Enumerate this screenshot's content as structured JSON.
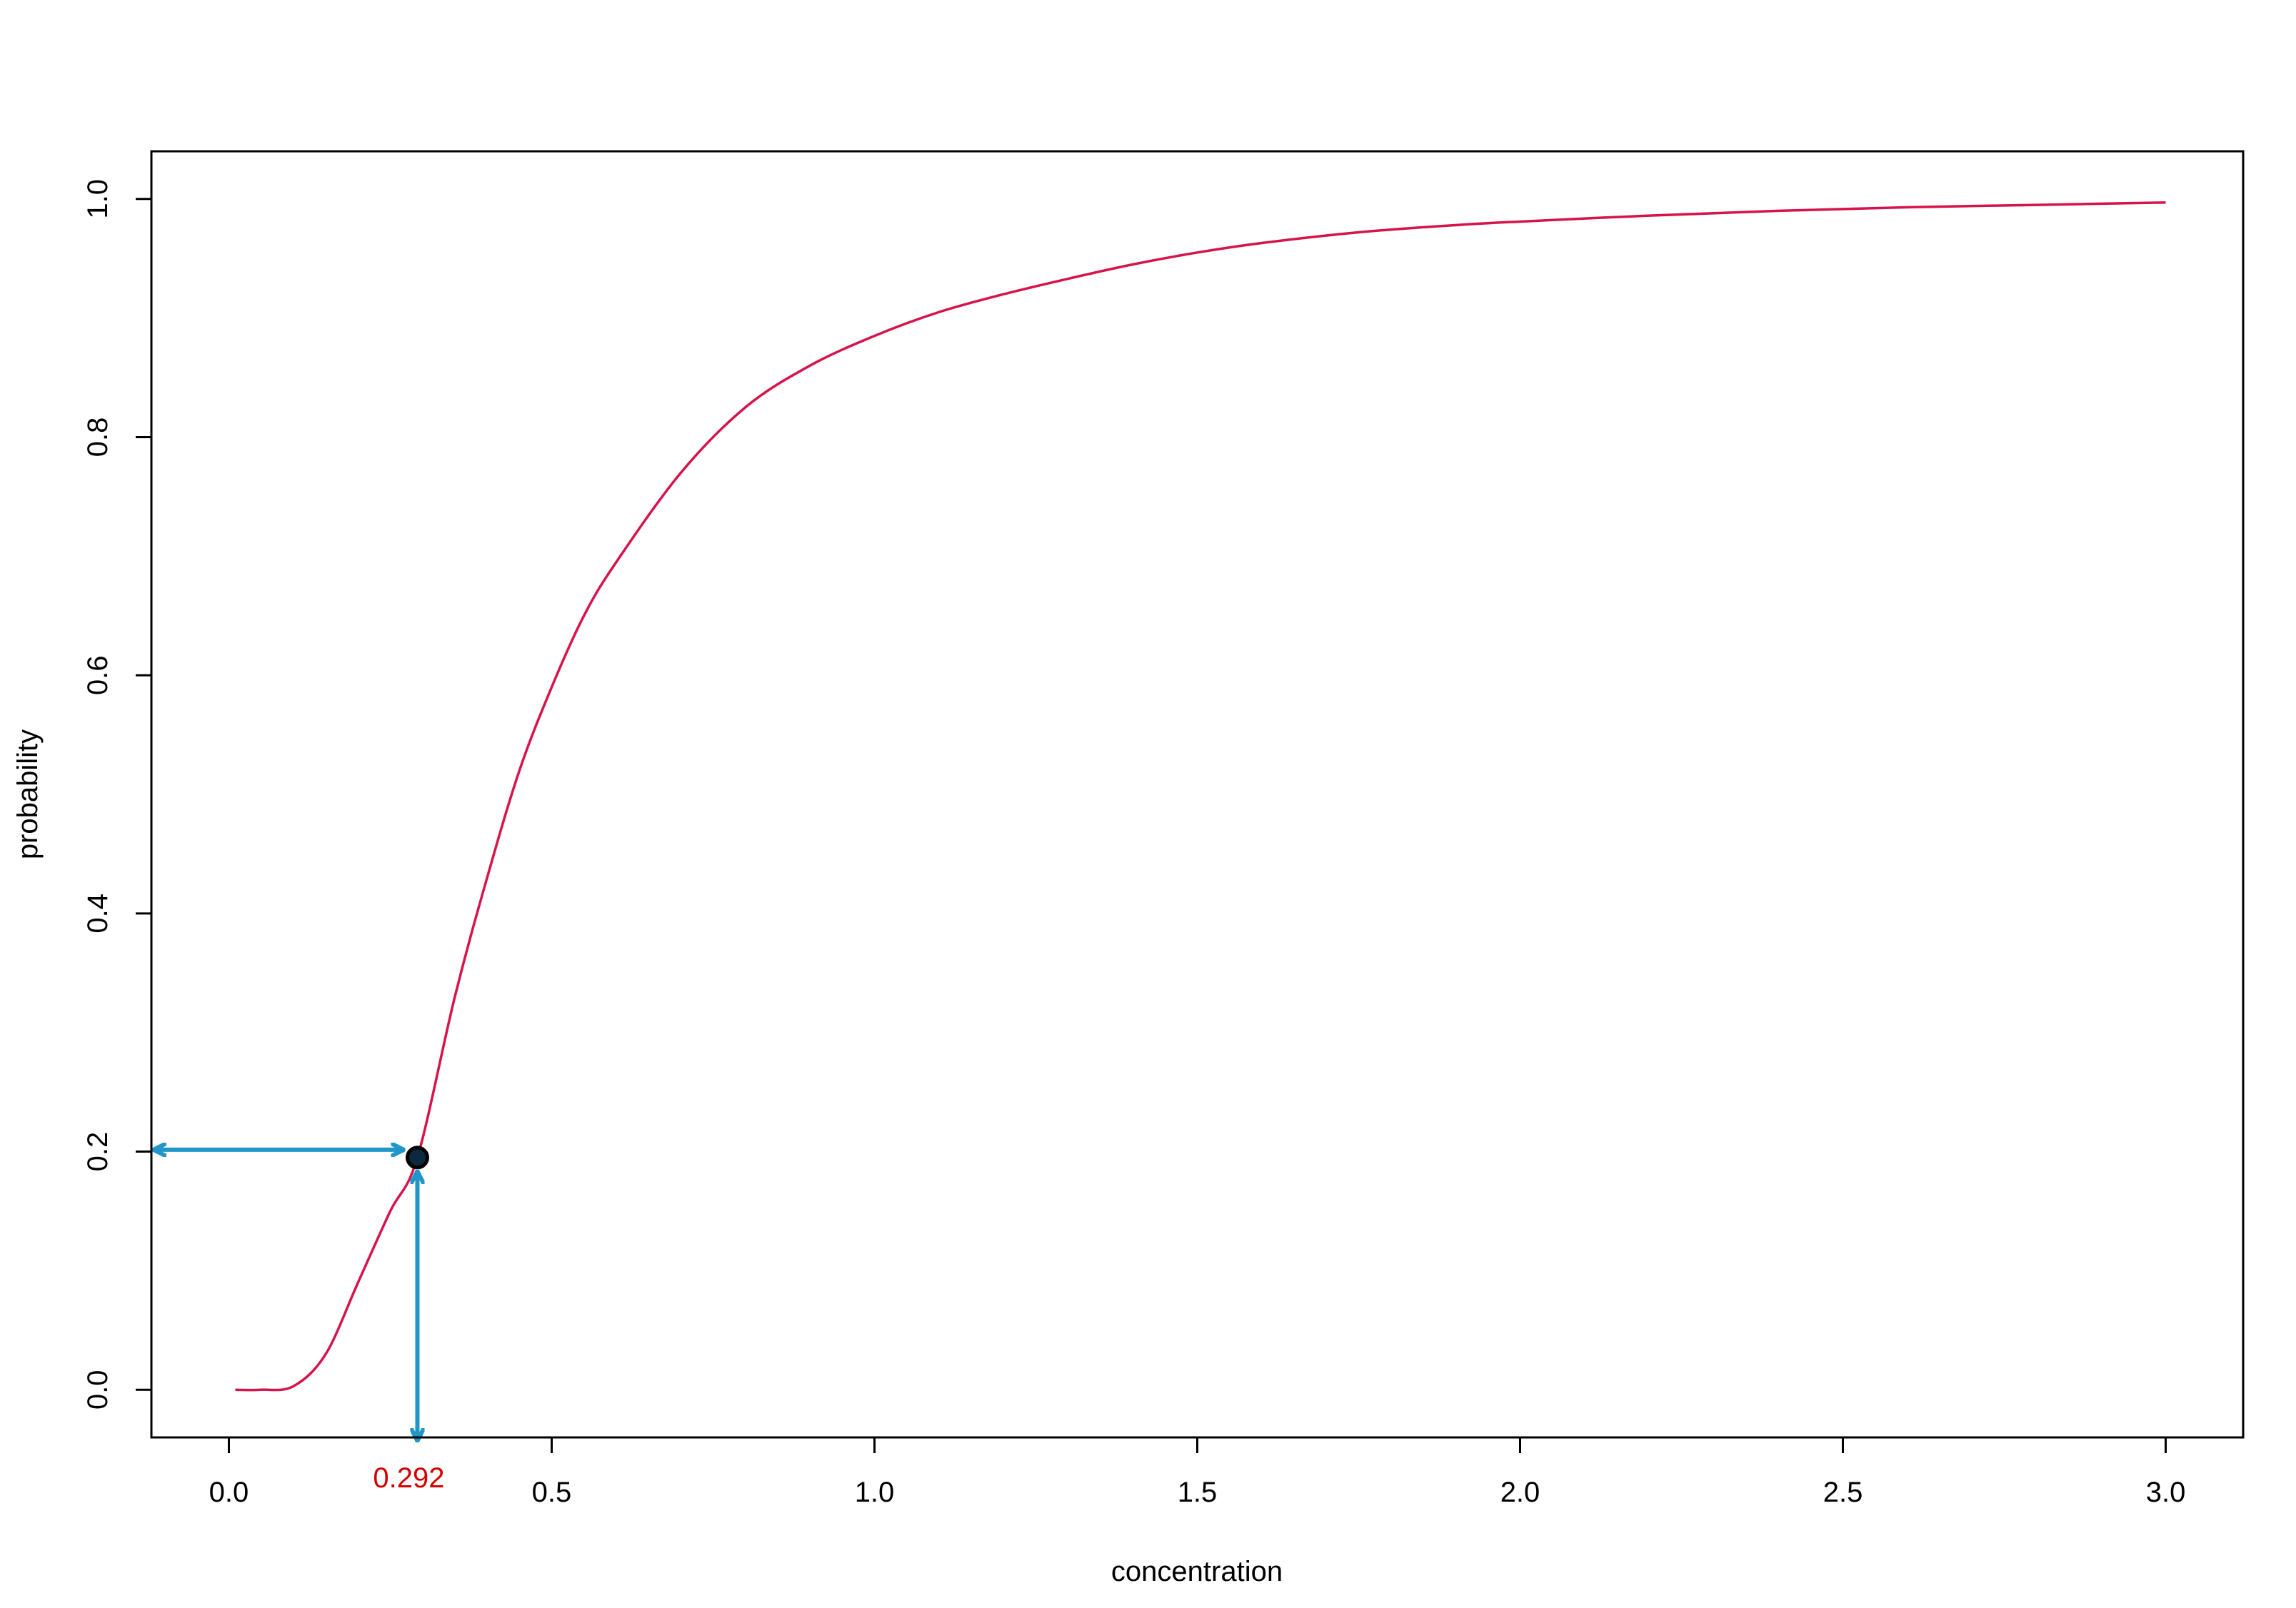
{
  "chart_data": {
    "type": "line",
    "title": "",
    "xlabel": "concentration",
    "ylabel": "probability",
    "xlim": [
      -0.12,
      3.12
    ],
    "ylim": [
      -0.04,
      1.04
    ],
    "x_ticks": [
      0.0,
      0.5,
      1.0,
      1.5,
      2.0,
      2.5,
      3.0
    ],
    "x_tick_labels": [
      "0.0",
      "0.5",
      "1.0",
      "1.5",
      "2.0",
      "2.5",
      "3.0"
    ],
    "y_ticks": [
      0.0,
      0.2,
      0.4,
      0.6,
      0.8,
      1.0
    ],
    "y_tick_labels": [
      "0.0",
      "0.2",
      "0.4",
      "0.6",
      "0.8",
      "1.0"
    ],
    "grid": false,
    "series": [
      {
        "color": "#d6134a",
        "x": [
          0.01,
          0.05,
          0.1,
          0.15,
          0.2,
          0.25,
          0.292,
          0.35,
          0.4,
          0.45,
          0.5,
          0.55,
          0.6,
          0.7,
          0.8,
          0.9,
          1.0,
          1.1,
          1.2,
          1.3,
          1.4,
          1.5,
          1.6,
          1.75,
          1.9,
          2.0,
          2.2,
          2.4,
          2.6,
          2.8,
          3.0
        ],
        "y": [
          0.0,
          0.0,
          0.003,
          0.03,
          0.09,
          0.15,
          0.195,
          0.33,
          0.43,
          0.52,
          0.59,
          0.65,
          0.695,
          0.77,
          0.825,
          0.86,
          0.885,
          0.905,
          0.92,
          0.933,
          0.945,
          0.955,
          0.963,
          0.972,
          0.978,
          0.981,
          0.986,
          0.99,
          0.993,
          0.995,
          0.997
        ]
      }
    ],
    "highlight_point": {
      "x": 0.292,
      "y": 0.195,
      "label": "0.292",
      "label_color": "#d40000",
      "point_color": "#0b2a3f",
      "arrow_color": "#2196c8"
    }
  }
}
